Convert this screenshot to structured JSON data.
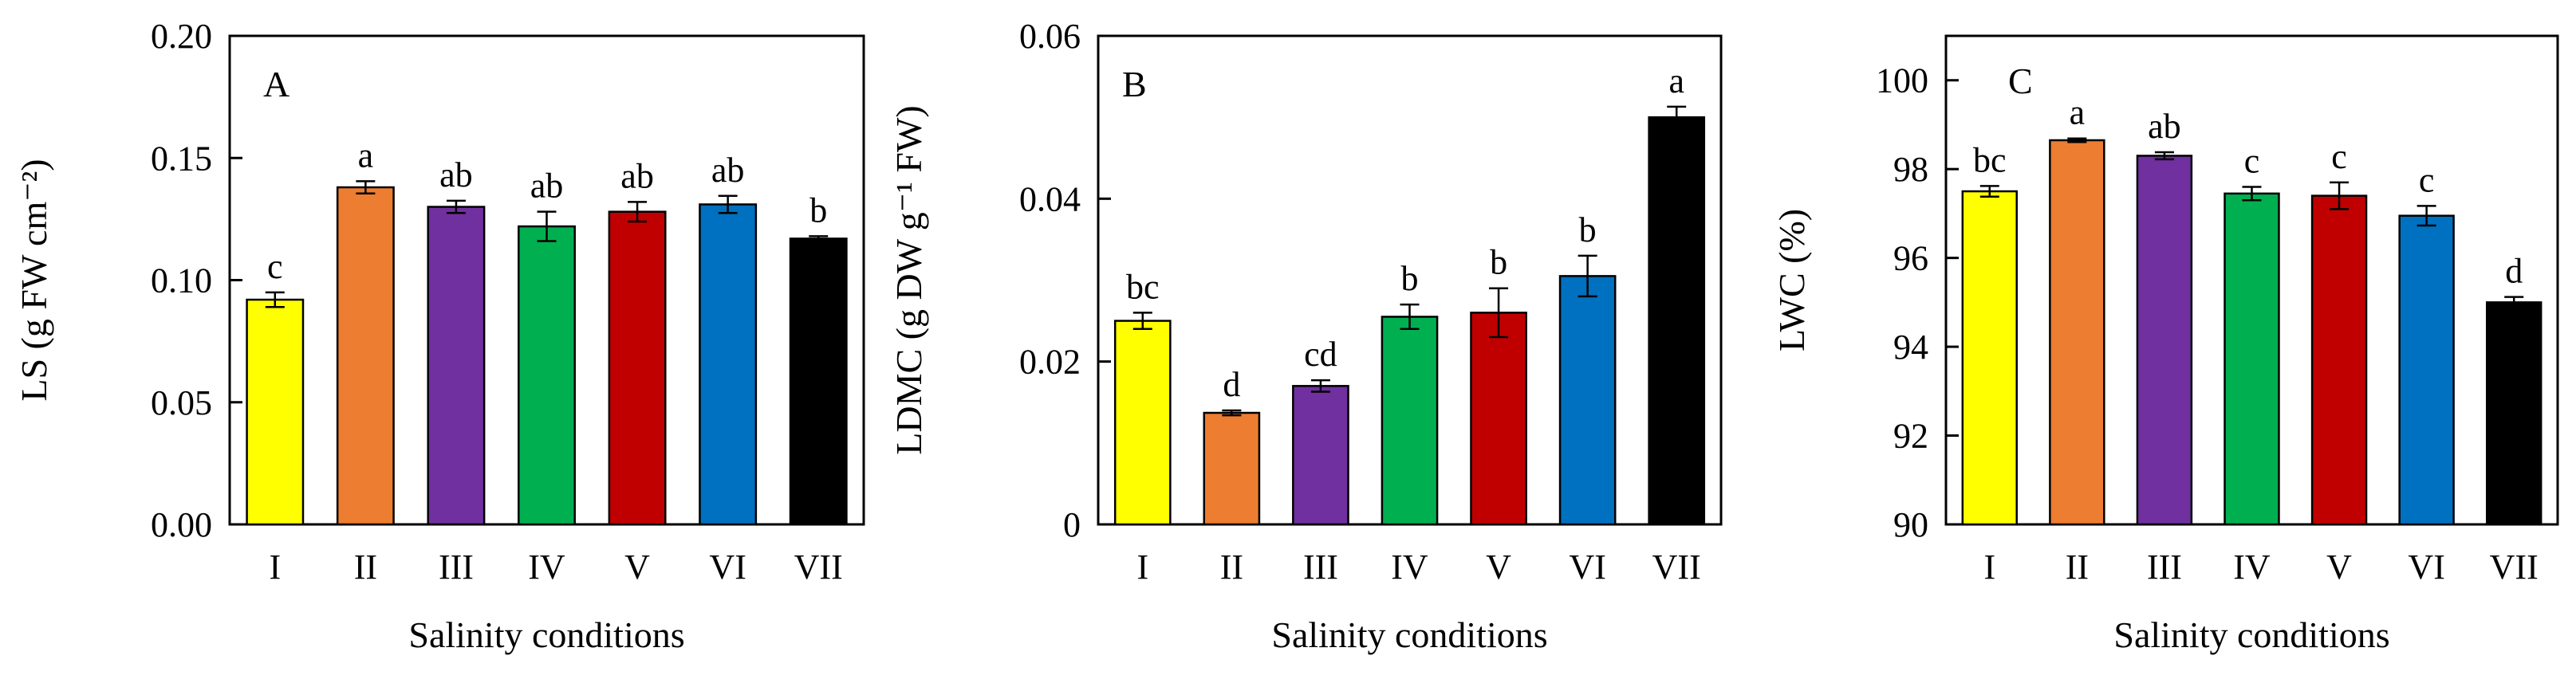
{
  "figure": {
    "categories": [
      "I",
      "II",
      "III",
      "IV",
      "V",
      "VI",
      "VII"
    ],
    "bar_colors": [
      "#ffff00",
      "#ed7d31",
      "#7030a0",
      "#00b050",
      "#c00000",
      "#0070c0",
      "#000000"
    ]
  },
  "chart_data": [
    {
      "type": "bar",
      "panel": "A",
      "xlabel": "Salinity conditions",
      "ylabel": "LS (g  FW cm⁻²)",
      "ylim": [
        0,
        0.2
      ],
      "yticks": [
        0,
        0.05,
        0.1,
        0.15,
        0.2
      ],
      "ytick_labels": [
        "0.00",
        "0.05",
        "0.10",
        "0.15",
        "0.20"
      ],
      "categories": [
        "I",
        "II",
        "III",
        "IV",
        "V",
        "VI",
        "VII"
      ],
      "values": [
        0.092,
        0.138,
        0.13,
        0.122,
        0.128,
        0.131,
        0.117
      ],
      "errors": [
        0.003,
        0.0025,
        0.0025,
        0.006,
        0.004,
        0.0035,
        0.001
      ],
      "labels": [
        "c",
        "a",
        "ab",
        "ab",
        "ab",
        "ab",
        "b"
      ]
    },
    {
      "type": "bar",
      "panel": "B",
      "xlabel": "Salinity conditions",
      "ylabel": "LDMC (g  DW g⁻¹ FW)",
      "ylim": [
        0,
        0.06
      ],
      "yticks": [
        0,
        0.02,
        0.04,
        0.06
      ],
      "ytick_labels": [
        "0",
        "0.02",
        "0.04",
        "0.06"
      ],
      "categories": [
        "I",
        "II",
        "III",
        "IV",
        "V",
        "VI",
        "VII"
      ],
      "values": [
        0.025,
        0.0137,
        0.017,
        0.0255,
        0.026,
        0.0305,
        0.05
      ],
      "errors": [
        0.001,
        0.0003,
        0.0007,
        0.0015,
        0.003,
        0.0025,
        0.0013
      ],
      "labels": [
        "bc",
        "d",
        "cd",
        "b",
        "b",
        "b",
        "a"
      ]
    },
    {
      "type": "bar",
      "panel": "C",
      "xlabel": "Salinity conditions",
      "ylabel": "LWC (%)",
      "ylim": [
        90,
        101
      ],
      "yticks": [
        90,
        92,
        94,
        96,
        98,
        100
      ],
      "ytick_labels": [
        "90",
        "92",
        "94",
        "96",
        "98",
        "100"
      ],
      "categories": [
        "I",
        "II",
        "III",
        "IV",
        "V",
        "VI",
        "VII"
      ],
      "values": [
        97.5,
        98.65,
        98.3,
        97.45,
        97.4,
        96.95,
        95.0
      ],
      "errors": [
        0.12,
        0.04,
        0.08,
        0.15,
        0.3,
        0.22,
        0.12
      ],
      "labels": [
        "bc",
        "a",
        "ab",
        "c",
        "c",
        "c",
        "d"
      ]
    }
  ]
}
